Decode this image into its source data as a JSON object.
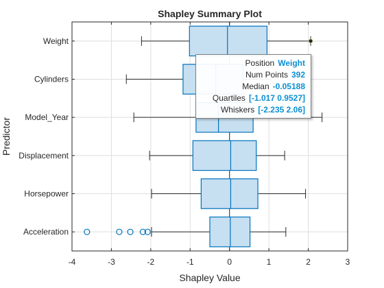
{
  "chart_data": {
    "type": "box",
    "orientation": "horizontal",
    "title": "Shapley Summary Plot",
    "xlabel": "Shapley Value",
    "ylabel": "Predictor",
    "xlim": [
      -4,
      3
    ],
    "xticks": [
      -4,
      -3,
      -2,
      -1,
      0,
      1,
      2,
      3
    ],
    "grid": true,
    "box_color": "#0072bd",
    "box_fill": "#c6dff1",
    "categories": [
      "Acceleration",
      "Horsepower",
      "Displacement",
      "Model_Year",
      "Cylinders",
      "Weight"
    ],
    "boxes": [
      {
        "name": "Acceleration",
        "whisker_low": -1.98,
        "q1": -0.5,
        "median": 0.02,
        "q3": 0.52,
        "whisker_high": 1.43,
        "outliers": [
          -3.62,
          -2.8,
          -2.52,
          -2.2,
          -2.08
        ]
      },
      {
        "name": "Horsepower",
        "whisker_low": -1.98,
        "q1": -0.72,
        "median": 0.03,
        "q3": 0.72,
        "whisker_high": 1.93,
        "outliers": []
      },
      {
        "name": "Displacement",
        "whisker_low": -2.03,
        "q1": -0.93,
        "median": 0.03,
        "q3": 0.68,
        "whisker_high": 1.4,
        "outliers": []
      },
      {
        "name": "Model_Year",
        "whisker_low": -2.43,
        "q1": -0.85,
        "median": -0.28,
        "q3": 0.6,
        "whisker_high": 2.35,
        "outliers": []
      },
      {
        "name": "Cylinders",
        "whisker_low": -2.62,
        "q1": -1.18,
        "median": -0.35,
        "q3": 0.35,
        "whisker_high": 1.05,
        "outliers": []
      },
      {
        "name": "Weight",
        "whisker_low": -2.235,
        "q1": -1.017,
        "median": -0.05188,
        "q3": 0.9527,
        "whisker_high": 2.06,
        "outliers": []
      }
    ],
    "zero_line": 0,
    "datatip": {
      "position": "Weight",
      "num_points": "392",
      "median": "-0.05188",
      "quartiles": "[-1.017  0.9527]",
      "whiskers": "[-2.235  2.06]",
      "marker_x": 2.06,
      "marker_category": "Weight"
    }
  },
  "datatip_labels": {
    "position": "Position",
    "num_points": "Num Points",
    "median": "Median",
    "quartiles": "Quartiles",
    "whiskers": "Whiskers"
  }
}
